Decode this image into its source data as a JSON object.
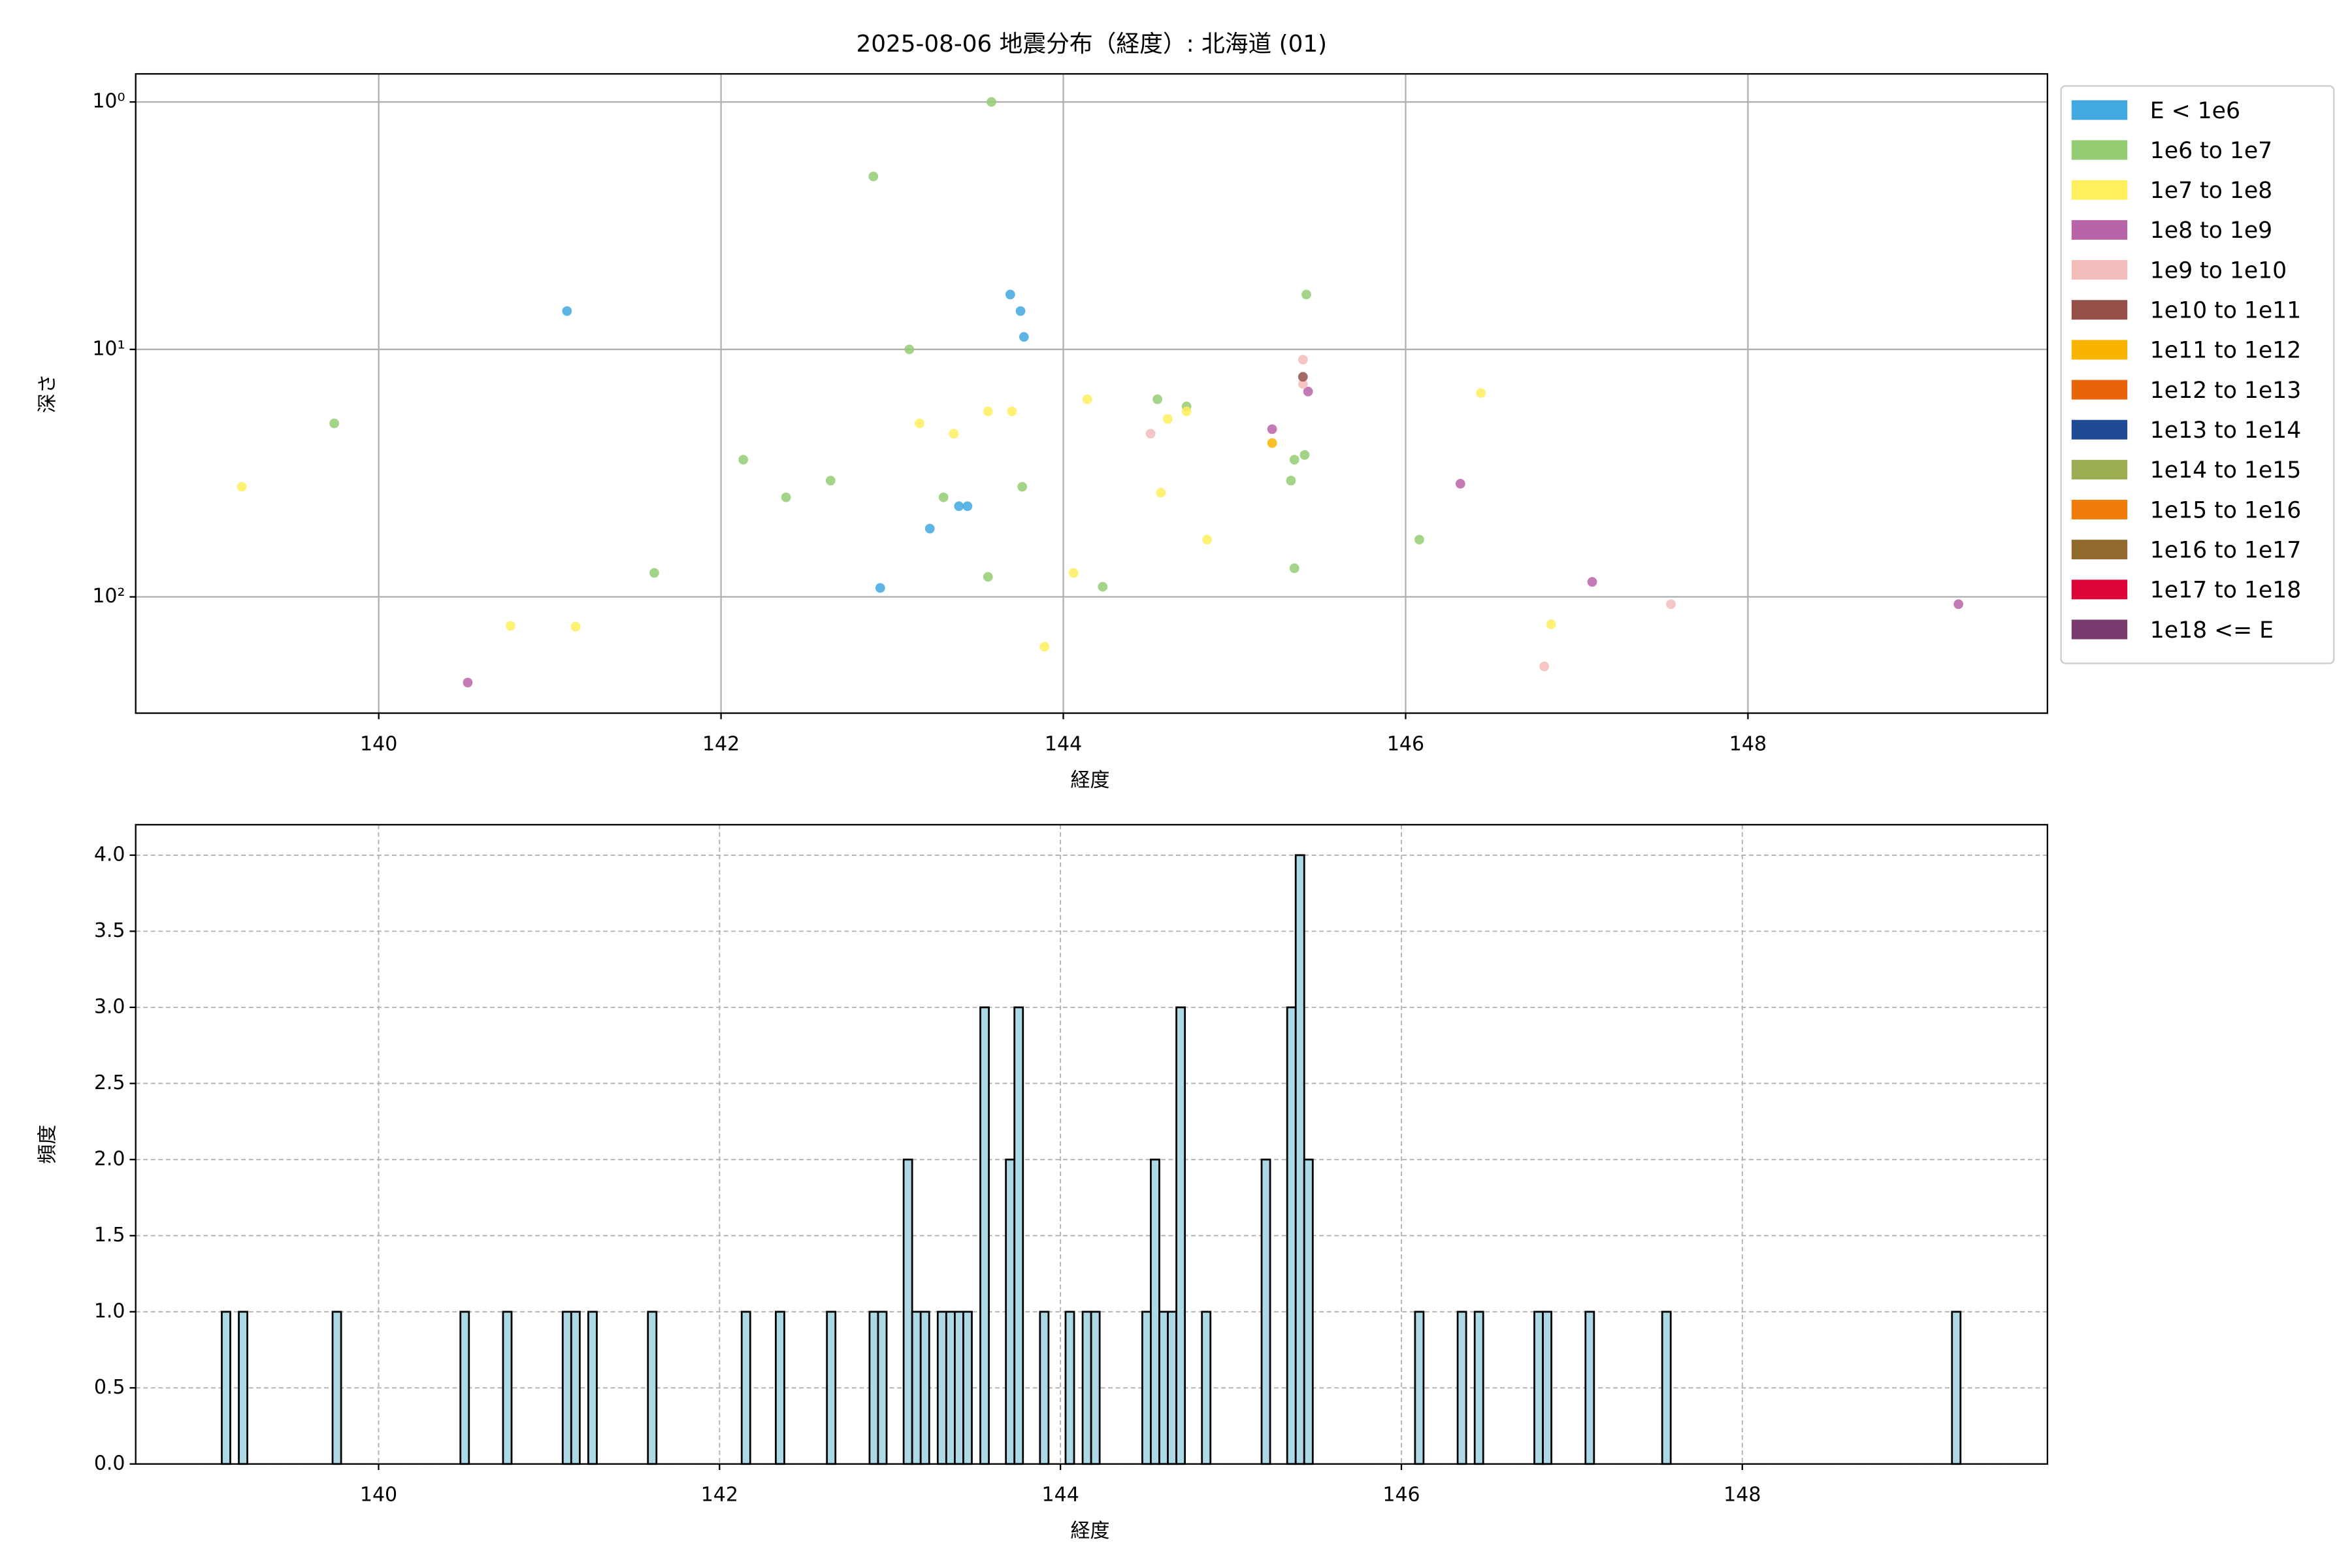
{
  "chart_data": [
    {
      "type": "scatter",
      "title": "2025-08-06 地震分布（経度）: 北海道 (01)",
      "x_label": "経度",
      "y_label": "深さ",
      "xlim": [
        138.58,
        149.75
      ],
      "xticks": [
        140,
        142,
        144,
        146,
        148
      ],
      "ylim": [
        295,
        0.77
      ],
      "yscale": "log",
      "yticks": [
        {
          "value": 1,
          "label": "10⁰"
        },
        {
          "value": 10,
          "label": "10¹"
        },
        {
          "value": 100,
          "label": "10²"
        }
      ],
      "grid": true,
      "legend": "outside upper right",
      "series": [
        {
          "name": "E < 1e6",
          "color": "#41a8e0",
          "x": [
            141.1,
            142.93,
            143.22,
            143.39,
            143.44,
            143.69,
            143.75,
            143.77
          ],
          "y": [
            7.0,
            92,
            53,
            43,
            43,
            6.0,
            7.0,
            8.9
          ]
        },
        {
          "name": "1e6 to 1e7",
          "color": "#93cc72",
          "x": [
            139.74,
            141.61,
            142.13,
            142.38,
            142.64,
            142.89,
            143.1,
            143.3,
            143.56,
            143.58,
            143.76,
            144.23,
            144.55,
            144.72,
            145.33,
            145.35,
            145.35,
            145.41,
            145.42,
            146.08
          ],
          "y": [
            19.9,
            80,
            27.9,
            39.6,
            33.9,
            2.0,
            10,
            39.6,
            83,
            1.0,
            35.9,
            91,
            15.9,
            17,
            33.9,
            76.6,
            27.9,
            26.7,
            6.0,
            58.7
          ]
        },
        {
          "name": "1e7 to 1e8",
          "color": "#ffef5a",
          "x": [
            139.2,
            140.77,
            141.15,
            143.16,
            143.36,
            143.56,
            143.7,
            143.89,
            144.06,
            144.14,
            144.57,
            144.61,
            144.72,
            144.84,
            146.44,
            146.85
          ],
          "y": [
            35.9,
            131,
            132,
            19.9,
            21.9,
            17.8,
            17.8,
            159,
            80,
            15.9,
            37.9,
            19.1,
            17.8,
            58.7,
            15,
            129
          ]
        },
        {
          "name": "1e8 to 1e9",
          "color": "#b963a8",
          "x": [
            140.52,
            145.22,
            145.43,
            146.32,
            147.09,
            149.23
          ],
          "y": [
            222,
            21,
            14.8,
            34.9,
            87,
            107
          ]
        },
        {
          "name": "1e9 to 1e10",
          "color": "#f5bcbc",
          "x": [
            144.51,
            145.4,
            145.4,
            146.81,
            147.55
          ],
          "y": [
            21.9,
            11,
            13.8,
            191,
            107
          ]
        },
        {
          "name": "1e10 to 1e11",
          "color": "#96504a",
          "x": [
            145.4
          ],
          "y": [
            12.9
          ]
        },
        {
          "name": "1e11 to 1e12",
          "color": "#f8b400",
          "x": [
            145.22
          ],
          "y": [
            23.9
          ]
        },
        {
          "name": "1e12 to 1e13",
          "color": "#e8630a",
          "x": [],
          "y": []
        },
        {
          "name": "1e13 to 1e14",
          "color": "#1d4a93",
          "x": [],
          "y": []
        },
        {
          "name": "1e14 to 1e15",
          "color": "#9aad52",
          "x": [],
          "y": []
        },
        {
          "name": "1e15 to 1e16",
          "color": "#f07c0a",
          "x": [],
          "y": []
        },
        {
          "name": "1e16 to 1e17",
          "color": "#936a2d",
          "x": [],
          "y": []
        },
        {
          "name": "1e17 to 1e18",
          "color": "#dd0437",
          "x": [],
          "y": []
        },
        {
          "name": "1e18 <= E",
          "color": "#7a3b6e",
          "x": [],
          "y": []
        }
      ]
    },
    {
      "type": "histogram",
      "x_label": "経度",
      "y_label": "頻度",
      "color": "#add8e6",
      "edgecolor": "#000000",
      "xlim": [
        138.575,
        149.79
      ],
      "xticks": [
        140,
        142,
        144,
        146,
        148
      ],
      "ylim": [
        0,
        4.2
      ],
      "yticks": [
        {
          "value": 0,
          "label": "0.0"
        },
        0.5,
        {
          "value": 1,
          "label": "1.0"
        },
        1.5,
        {
          "value": 2,
          "label": "2.0"
        },
        2.5,
        {
          "value": 3,
          "label": "3.0"
        },
        3.5,
        {
          "value": 4,
          "label": "4.0"
        }
      ],
      "grid": true,
      "bins": [
        139.08,
        139.13,
        139.18,
        139.23,
        139.73,
        139.78,
        140.48,
        140.53,
        140.73,
        140.78,
        141.08,
        141.13,
        141.18,
        141.23,
        141.28,
        141.58,
        141.63,
        142.13,
        142.18,
        142.33,
        142.38,
        142.63,
        142.68,
        142.88,
        142.93,
        142.98,
        143.08,
        143.13,
        143.18,
        143.23,
        143.28,
        143.33,
        143.38,
        143.43,
        143.48,
        143.53,
        143.58,
        143.68,
        143.73,
        143.78,
        143.88,
        143.93,
        144.03,
        144.08,
        144.13,
        144.18,
        144.23,
        144.48,
        144.53,
        144.58,
        144.63,
        144.68,
        144.73,
        144.83,
        144.88,
        145.18,
        145.23,
        145.33,
        145.38,
        145.43,
        145.48,
        146.08,
        146.13,
        146.33,
        146.38,
        146.43,
        146.48,
        146.78,
        146.83,
        146.88,
        147.08,
        147.13,
        147.53,
        147.58,
        149.23,
        149.28
      ],
      "values": [
        1,
        0,
        1,
        0,
        1,
        0,
        1,
        0,
        1,
        0,
        1,
        1,
        0,
        1,
        0,
        1,
        0,
        1,
        0,
        1,
        0,
        1,
        0,
        1,
        1,
        0,
        2,
        1,
        1,
        0,
        1,
        1,
        1,
        1,
        0,
        3,
        0,
        2,
        3,
        0,
        1,
        0,
        1,
        0,
        1,
        1,
        0,
        1,
        2,
        1,
        1,
        3,
        0,
        1,
        0,
        2,
        0,
        3,
        4,
        2,
        0,
        1,
        0,
        1,
        0,
        1,
        0,
        1,
        1,
        0,
        1,
        0,
        1,
        0,
        1
      ]
    }
  ]
}
